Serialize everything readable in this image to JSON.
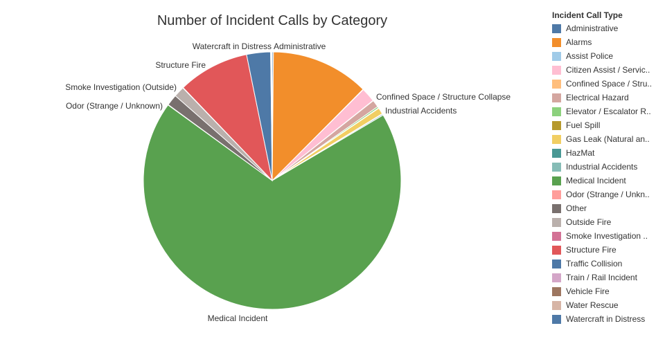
{
  "chart_data": {
    "type": "pie",
    "title": "Number of Incident Calls by Category",
    "legend_title": "Incident Call Type",
    "legend_position": "right",
    "categories": [
      "Administrative",
      "Alarms",
      "Assist Police",
      "Citizen Assist / Servic..",
      "Confined Space / Stru..",
      "Electrical Hazard",
      "Elevator / Escalator R..",
      "Fuel Spill",
      "Gas Leak (Natural an..",
      "HazMat",
      "Industrial Accidents",
      "Medical Incident",
      "Odor (Strange / Unkn..",
      "Other",
      "Outside Fire",
      "Smoke Investigation ..",
      "Structure Fire",
      "Traffic Collision",
      "Train / Rail Incident",
      "Vehicle Fire",
      "Water Rescue",
      "Watercraft in Distress"
    ],
    "colors": [
      "#4e79a7",
      "#f28e2b",
      "#a0cbe8",
      "#ffbed2",
      "#ffbe7d",
      "#d4a6a0",
      "#8cd17d",
      "#b6992d",
      "#f1ce63",
      "#499894",
      "#86bcb6",
      "#59a14f",
      "#ff9d9a",
      "#79706e",
      "#bab0ac",
      "#d37295",
      "#e15759",
      "#4e79a7",
      "#d4a6c8",
      "#9d7660",
      "#d7b5a6",
      "#4e79a7"
    ],
    "values": [
      0.15,
      12.3,
      0.05,
      1.8,
      0.05,
      0.9,
      0.2,
      0.05,
      0.8,
      0.05,
      0.15,
      68.5,
      0.05,
      1.4,
      1.35,
      0.05,
      8.95,
      3.0,
      0.05,
      0.05,
      0.05,
      0.05
    ],
    "slice_labels": [
      {
        "category": "Administrative",
        "text": "Administrative"
      },
      {
        "category": "Confined Space / Stru..",
        "text": "Confined Space / Structure Collapse"
      },
      {
        "category": "Industrial Accidents",
        "text": "Industrial Accidents"
      },
      {
        "category": "Medical Incident",
        "text": "Medical Incident"
      },
      {
        "category": "Odor (Strange / Unkn..",
        "text": "Odor (Strange / Unknown)"
      },
      {
        "category": "Smoke Investigation ..",
        "text": "Smoke Investigation (Outside)"
      },
      {
        "category": "Structure Fire",
        "text": "Structure Fire"
      },
      {
        "category": "Watercraft in Distress",
        "text": "Watercraft in Distress"
      }
    ]
  }
}
